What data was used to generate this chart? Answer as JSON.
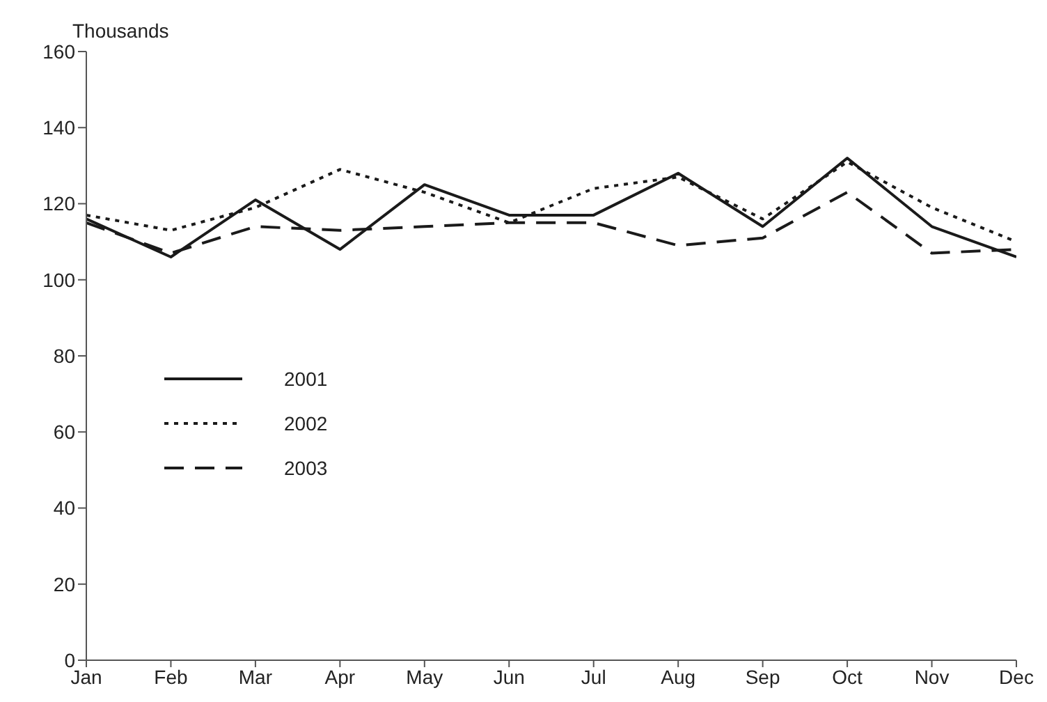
{
  "chart_data": {
    "type": "line",
    "ylabel": "Thousands",
    "categories": [
      "Jan",
      "Feb",
      "Mar",
      "Apr",
      "May",
      "Jun",
      "Jul",
      "Aug",
      "Sep",
      "Oct",
      "Nov",
      "Dec"
    ],
    "series": [
      {
        "name": "2001",
        "color": "#1a1a1a",
        "line_style": "solid",
        "values": [
          116,
          106,
          121,
          108,
          125,
          117,
          117,
          128,
          114,
          132,
          114,
          106
        ]
      },
      {
        "name": "2002",
        "color": "#1a1a1a",
        "line_style": "dotted",
        "values": [
          117,
          113,
          119,
          129,
          123,
          115,
          124,
          127,
          116,
          131,
          119,
          110
        ]
      },
      {
        "name": "2003",
        "color": "#1a1a1a",
        "line_style": "dashed",
        "values": [
          115,
          107,
          114,
          113,
          114,
          115,
          115,
          109,
          111,
          123,
          107,
          108
        ]
      }
    ],
    "ylim": [
      0,
      160
    ],
    "yticks": [
      0,
      20,
      40,
      60,
      80,
      100,
      120,
      140,
      160
    ],
    "grid": false,
    "legend": "left",
    "marker": "none"
  }
}
